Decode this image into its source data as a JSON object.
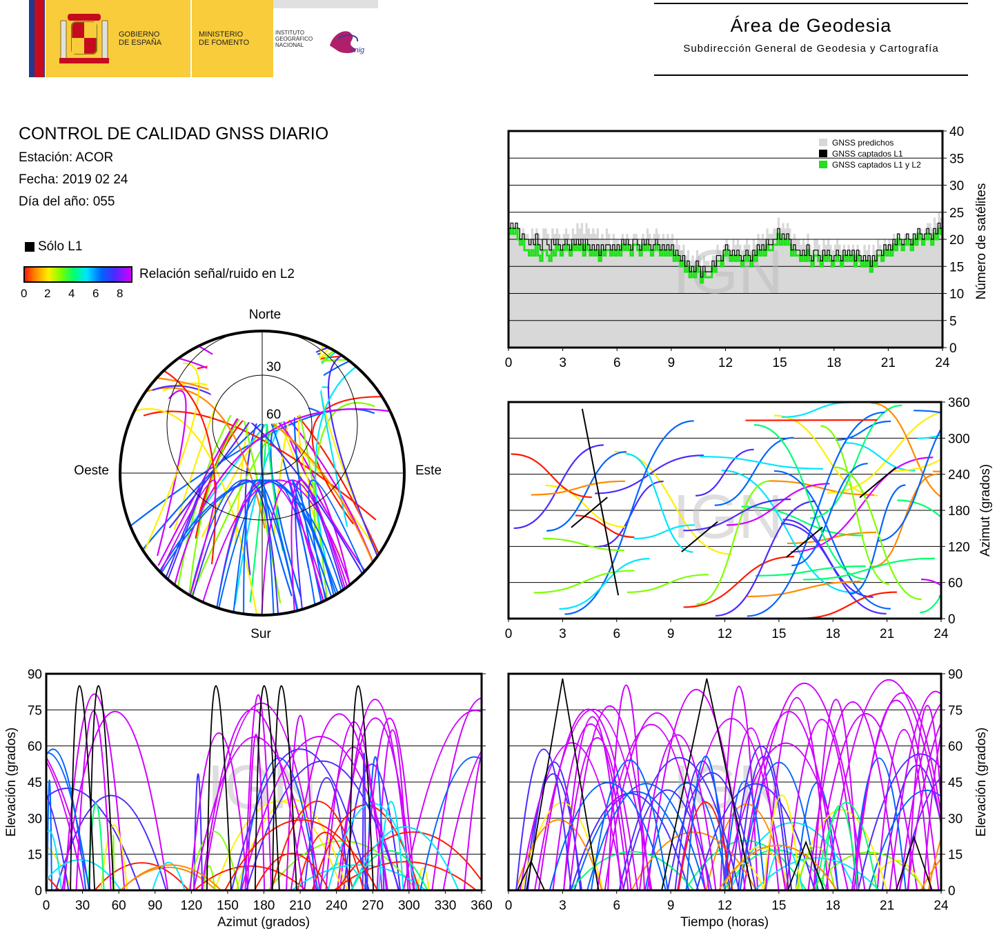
{
  "header": {
    "gobierno": [
      "GOBIERNO",
      "DE ESPAÑA"
    ],
    "ministerio": [
      "MINISTERIO",
      "DE FOMENTO"
    ],
    "instituto": [
      "INSTITUTO",
      "GEOGRÁFICO",
      "NACIONAL"
    ],
    "cnig": "cnig",
    "area_title": "Área de Geodesia",
    "area_subtitle": "Subdirección General de Geodesia y Cartografía"
  },
  "info": {
    "title": "CONTROL DE CALIDAD GNSS DIARIO",
    "station": "Estación: ACOR",
    "date": "Fecha: 2019 02 24",
    "doy": "Día del año: 055"
  },
  "legend": {
    "l1_only": "Sólo L1",
    "snr_label": "Relación señal/ruido en L2",
    "snr_ticks": [
      "0",
      "2",
      "4",
      "6",
      "8"
    ]
  },
  "watermark": "IGN",
  "colors": {
    "predicted": "#d8d8d8",
    "l1": "#000000",
    "l1l2": "#22e01c",
    "snr_scale": [
      "#ff1a00",
      "#ff8a00",
      "#ffee00",
      "#7dff00",
      "#00ff70",
      "#00e5ff",
      "#0064ff",
      "#4a2bff",
      "#d000ff"
    ]
  },
  "chart_data": [
    {
      "type": "line",
      "id": "satellite-count",
      "ylabel": "Número de satélites",
      "xlim": [
        0,
        24
      ],
      "ylim": [
        0,
        40
      ],
      "xticks": [
        "0",
        "3",
        "6",
        "9",
        "12",
        "15",
        "18",
        "21",
        "24"
      ],
      "yticks": [
        "0",
        "5",
        "10",
        "15",
        "20",
        "25",
        "30",
        "35",
        "40"
      ],
      "legend_placement": "top-right",
      "series": [
        {
          "name": "GNSS predichos",
          "x": [
            0,
            1,
            2,
            3,
            4,
            5,
            6,
            7,
            8,
            9,
            10,
            11,
            12,
            13,
            14,
            15,
            16,
            17,
            18,
            19,
            20,
            21,
            22,
            23,
            24
          ],
          "values": [
            22,
            21,
            21,
            21,
            22,
            21,
            20,
            20,
            21,
            20,
            17,
            16,
            19,
            19,
            20,
            23,
            20,
            19,
            19,
            18,
            18,
            20,
            20,
            22,
            24
          ]
        },
        {
          "name": "GNSS captados L1",
          "x": [
            0,
            1,
            2,
            3,
            4,
            5,
            6,
            7,
            8,
            9,
            10,
            11,
            12,
            13,
            14,
            15,
            16,
            17,
            18,
            19,
            20,
            21,
            22,
            23,
            24
          ],
          "values": [
            23,
            20,
            19,
            19,
            19,
            18,
            19,
            19,
            19,
            18,
            15,
            14,
            18,
            17,
            18,
            21,
            18,
            17,
            17,
            17,
            16,
            19,
            20,
            21,
            22
          ]
        },
        {
          "name": "GNSS captados L1 y L2",
          "x": [
            0,
            1,
            2,
            3,
            4,
            5,
            6,
            7,
            8,
            9,
            10,
            11,
            12,
            13,
            14,
            15,
            16,
            17,
            18,
            19,
            20,
            21,
            22,
            23,
            24
          ],
          "values": [
            22,
            18,
            17,
            18,
            18,
            17,
            18,
            18,
            18,
            17,
            14,
            13,
            17,
            16,
            17,
            20,
            17,
            16,
            16,
            16,
            15,
            18,
            19,
            20,
            21
          ]
        }
      ]
    },
    {
      "type": "scatter",
      "id": "skyplot",
      "north": "Norte",
      "south": "Sur",
      "west": "Oeste",
      "east": "Este",
      "rings": [
        "30",
        "60"
      ]
    },
    {
      "type": "scatter",
      "id": "azimuth-time",
      "ylabel": "Azimut (grados)",
      "xlim": [
        0,
        24
      ],
      "ylim": [
        0,
        360
      ],
      "xticks": [
        "0",
        "3",
        "6",
        "9",
        "12",
        "15",
        "18",
        "21",
        "24"
      ],
      "yticks": [
        "0",
        "60",
        "120",
        "180",
        "240",
        "300",
        "360"
      ]
    },
    {
      "type": "scatter",
      "id": "elevation-azimuth",
      "xlabel": "Azimut (grados)",
      "ylabel": "Elevación (grados)",
      "xlim": [
        0,
        360
      ],
      "ylim": [
        0,
        90
      ],
      "xticks": [
        "0",
        "30",
        "60",
        "90",
        "120",
        "150",
        "180",
        "210",
        "240",
        "270",
        "300",
        "330",
        "360"
      ],
      "yticks": [
        "0",
        "15",
        "30",
        "45",
        "60",
        "75",
        "90"
      ]
    },
    {
      "type": "scatter",
      "id": "elevation-time",
      "xlabel": "Tiempo (horas)",
      "ylabel": "Elevación (grados)",
      "xlim": [
        0,
        24
      ],
      "ylim": [
        0,
        90
      ],
      "xticks": [
        "0",
        "3",
        "6",
        "9",
        "12",
        "15",
        "18",
        "21",
        "24"
      ],
      "yticks": [
        "0",
        "15",
        "30",
        "45",
        "60",
        "75",
        "90"
      ]
    }
  ]
}
